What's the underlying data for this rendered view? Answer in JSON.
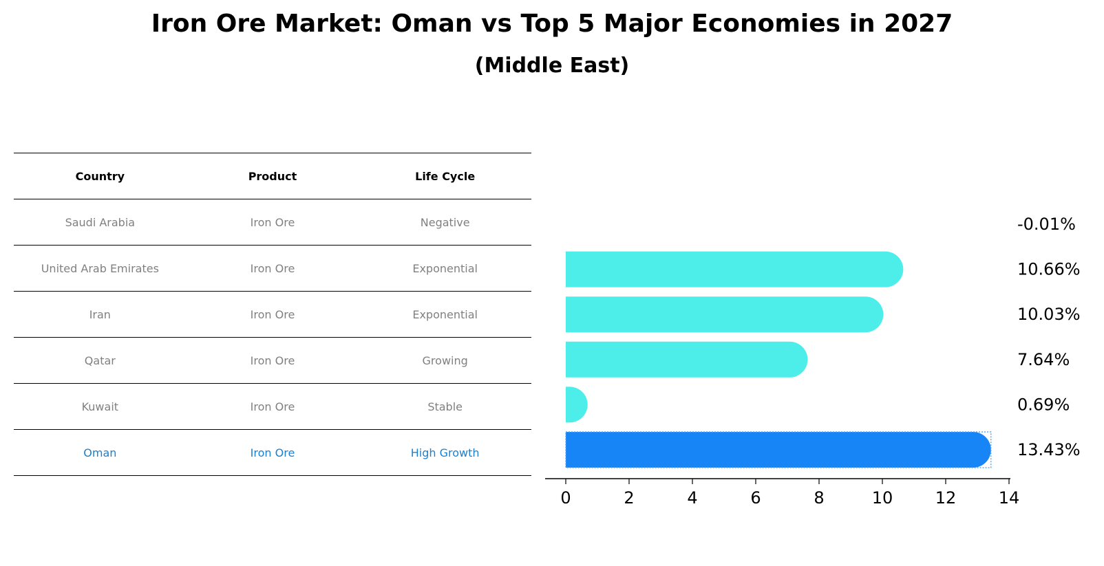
{
  "title": "Iron Ore Market: Oman vs Top 5 Major Economies in 2027",
  "subtitle": "(Middle East)",
  "table": {
    "headers": [
      "Country",
      "Product",
      "Life Cycle"
    ],
    "rows": [
      [
        "Saudi Arabia",
        "Iron Ore",
        "Negative"
      ],
      [
        "United Arab Emirates",
        "Iron Ore",
        "Exponential"
      ],
      [
        "Iran",
        "Iron Ore",
        "Exponential"
      ],
      [
        "Qatar",
        "Iron Ore",
        "Growing"
      ],
      [
        "Kuwait",
        "Iron Ore",
        "Stable"
      ],
      [
        "Oman",
        "Iron Ore",
        "High Growth"
      ]
    ],
    "highlight_row": 5
  },
  "chart_data": {
    "type": "bar",
    "orientation": "horizontal",
    "categories": [
      "Saudi Arabia",
      "United Arab Emirates",
      "Iran",
      "Qatar",
      "Kuwait",
      "Oman"
    ],
    "values": [
      -0.01,
      10.66,
      10.03,
      7.64,
      0.69,
      13.43
    ],
    "value_labels": [
      "-0.01%",
      "10.66%",
      "10.03%",
      "7.64%",
      "0.69%",
      "13.43%"
    ],
    "xlim": [
      0,
      14
    ],
    "xticks": [
      "0",
      "2",
      "4",
      "6",
      "8",
      "10",
      "12",
      "14"
    ],
    "colors": {
      "default": "#4deeea",
      "highlight": "#1785f5"
    },
    "highlight_index": 5,
    "grid": false
  }
}
